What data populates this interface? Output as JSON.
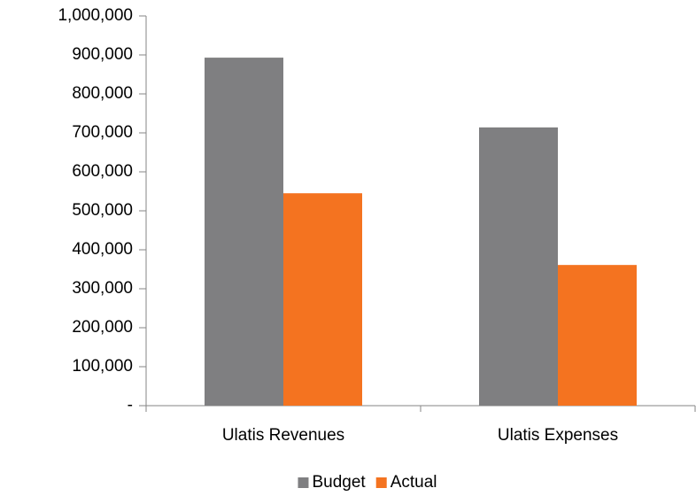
{
  "chart_data": {
    "type": "bar",
    "categories": [
      "Ulatis Revenues",
      "Ulatis Expenses"
    ],
    "series": [
      {
        "name": "Budget",
        "color": "#7f7f81",
        "values": [
          893000,
          714000
        ]
      },
      {
        "name": "Actual",
        "color": "#f47320",
        "values": [
          545000,
          361000
        ]
      }
    ],
    "ylim": [
      0,
      1000000
    ],
    "yticks": [
      {
        "value": 0,
        "label": "-"
      },
      {
        "value": 100000,
        "label": "100,000"
      },
      {
        "value": 200000,
        "label": "200,000"
      },
      {
        "value": 300000,
        "label": "300,000"
      },
      {
        "value": 400000,
        "label": "400,000"
      },
      {
        "value": 500000,
        "label": "500,000"
      },
      {
        "value": 600000,
        "label": "600,000"
      },
      {
        "value": 700000,
        "label": "700,000"
      },
      {
        "value": 800000,
        "label": "800,000"
      },
      {
        "value": 900000,
        "label": "900,000"
      },
      {
        "value": 1000000,
        "label": "1,000,000"
      }
    ],
    "grid": false,
    "legend": "bottom"
  }
}
